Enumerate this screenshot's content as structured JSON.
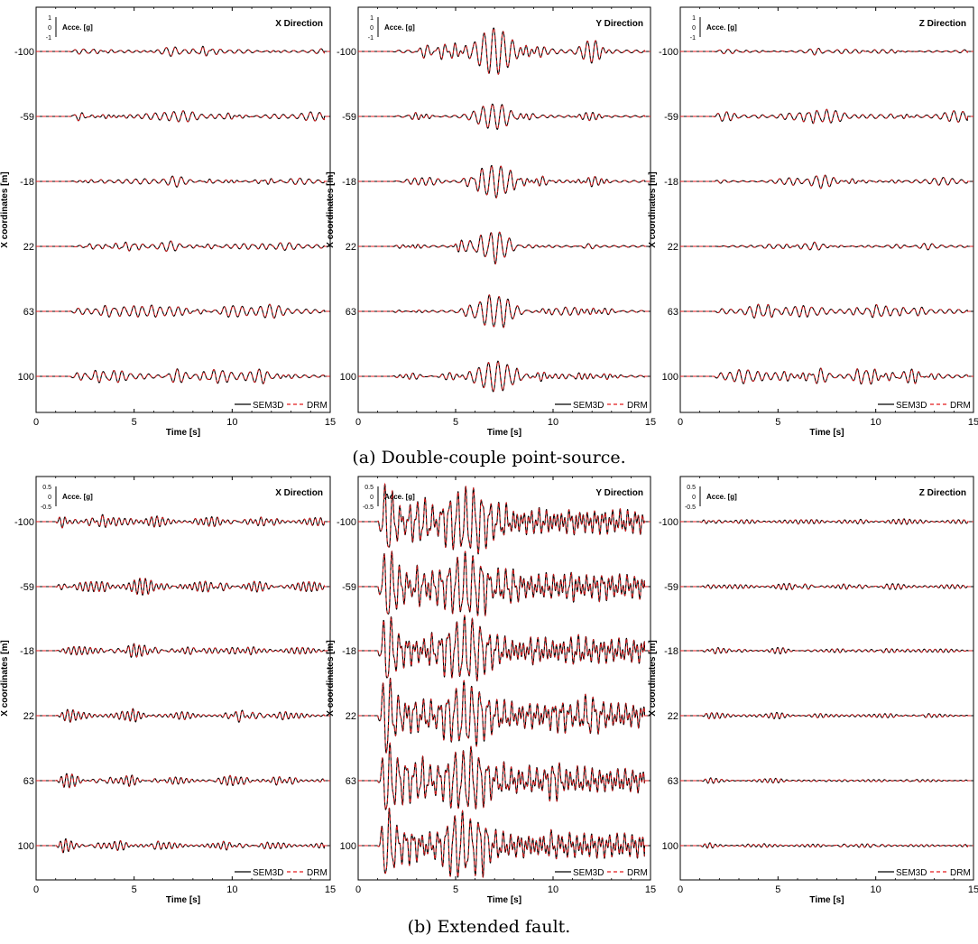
{
  "chart_data": [
    {
      "type": "line",
      "group": "a",
      "title": "X Direction",
      "xlabel": "Time [s]",
      "ylabel": "X coordinates [m]",
      "xlim": [
        0,
        15
      ],
      "xticks": [
        "0",
        "5",
        "10",
        "15"
      ],
      "stations": [
        "-100",
        "-59",
        "-18",
        "22",
        "63",
        "100"
      ],
      "scale_label": "Acce. [g]",
      "scale_ticks": [
        "1",
        "0",
        "-1"
      ],
      "legend": [
        "SEM3D",
        "DRM"
      ],
      "legend_position": "bottom-right",
      "series": [
        {
          "name": "SEM3D",
          "color": "#000000",
          "style": "solid"
        },
        {
          "name": "DRM",
          "color": "#e41a1c",
          "style": "dashed"
        }
      ],
      "peak_amplitude_g": [
        0.22,
        0.24,
        0.24,
        0.23,
        0.3,
        0.32
      ],
      "onset_s": 1.7
    },
    {
      "type": "line",
      "group": "a",
      "title": "Y Direction",
      "xlabel": "Time [s]",
      "ylabel": "X coordinates [m]",
      "xlim": [
        0,
        15
      ],
      "xticks": [
        "0",
        "5",
        "10",
        "15"
      ],
      "stations": [
        "-100",
        "-59",
        "-18",
        "22",
        "63",
        "100"
      ],
      "scale_label": "Acce. [g]",
      "scale_ticks": [
        "1",
        "0",
        "-1"
      ],
      "legend": [
        "SEM3D",
        "DRM"
      ],
      "legend_position": "bottom-right",
      "series": [
        {
          "name": "SEM3D",
          "color": "#000000",
          "style": "solid"
        },
        {
          "name": "DRM",
          "color": "#e41a1c",
          "style": "dashed"
        }
      ],
      "peak_amplitude_g": [
        1.0,
        0.55,
        0.7,
        0.75,
        0.7,
        0.65
      ],
      "onset_s": 1.7
    },
    {
      "type": "line",
      "group": "a",
      "title": "Z Direction",
      "xlabel": "Time [s]",
      "ylabel": "X coordinates [m]",
      "xlim": [
        0,
        15
      ],
      "xticks": [
        "0",
        "5",
        "10",
        "15"
      ],
      "stations": [
        "-100",
        "-59",
        "-18",
        "22",
        "63",
        "100"
      ],
      "scale_label": "Acce. [g]",
      "scale_ticks": [
        "1",
        "0",
        "-1"
      ],
      "legend": [
        "SEM3D",
        "DRM"
      ],
      "legend_position": "bottom-right",
      "series": [
        {
          "name": "SEM3D",
          "color": "#000000",
          "style": "solid"
        },
        {
          "name": "DRM",
          "color": "#e41a1c",
          "style": "dashed"
        }
      ],
      "peak_amplitude_g": [
        0.15,
        0.3,
        0.3,
        0.18,
        0.3,
        0.35
      ],
      "onset_s": 1.7
    },
    {
      "type": "line",
      "group": "b",
      "title": "X Direction",
      "xlabel": "Time [s]",
      "ylabel": "X coordinates [m]",
      "xlim": [
        0,
        15
      ],
      "xticks": [
        "0",
        "5",
        "10",
        "15"
      ],
      "stations": [
        "-100",
        "-59",
        "-18",
        "22",
        "63",
        "100"
      ],
      "scale_label": "Acce. [g]",
      "scale_ticks": [
        "0.5",
        "0",
        "-0.5"
      ],
      "legend": [
        "SEM3D",
        "DRM"
      ],
      "legend_position": "bottom-right",
      "series": [
        {
          "name": "SEM3D",
          "color": "#000000",
          "style": "solid"
        },
        {
          "name": "DRM",
          "color": "#e41a1c",
          "style": "dashed"
        }
      ],
      "peak_amplitude_g": [
        0.15,
        0.18,
        0.15,
        0.15,
        0.15,
        0.15
      ],
      "onset_s": 1.0
    },
    {
      "type": "line",
      "group": "b",
      "title": "Y Direction",
      "xlabel": "Time [s]",
      "ylabel": "X coordinates [m]",
      "xlim": [
        0,
        15
      ],
      "xticks": [
        "0",
        "5",
        "10",
        "15"
      ],
      "stations": [
        "-100",
        "-59",
        "-18",
        "22",
        "63",
        "100"
      ],
      "scale_label": "Acce. [g]",
      "scale_ticks": [
        "0.5",
        "0",
        "-0.5"
      ],
      "legend": [
        "SEM3D",
        "DRM"
      ],
      "legend_position": "bottom-right",
      "series": [
        {
          "name": "SEM3D",
          "color": "#000000",
          "style": "solid"
        },
        {
          "name": "DRM",
          "color": "#e41a1c",
          "style": "dashed"
        }
      ],
      "peak_amplitude_g": [
        0.8,
        0.75,
        0.75,
        0.8,
        0.8,
        0.8
      ],
      "onset_s": 1.0
    },
    {
      "type": "line",
      "group": "b",
      "title": "Z Direction",
      "xlabel": "Time [s]",
      "ylabel": "X coordinates [m]",
      "xlim": [
        0,
        15
      ],
      "xticks": [
        "0",
        "5",
        "10",
        "15"
      ],
      "stations": [
        "-100",
        "-59",
        "-18",
        "22",
        "63",
        "100"
      ],
      "scale_label": "Acce. [g]",
      "scale_ticks": [
        "0.5",
        "0",
        "-0.5"
      ],
      "legend": [
        "SEM3D",
        "DRM"
      ],
      "legend_position": "bottom-right",
      "series": [
        {
          "name": "SEM3D",
          "color": "#000000",
          "style": "solid"
        },
        {
          "name": "DRM",
          "color": "#e41a1c",
          "style": "dashed"
        }
      ],
      "peak_amplitude_g": [
        0.06,
        0.07,
        0.07,
        0.07,
        0.06,
        0.06
      ],
      "onset_s": 1.0
    }
  ],
  "captions": {
    "a": "(a) Double-couple point-source.",
    "b": "(b) Extended fault."
  }
}
